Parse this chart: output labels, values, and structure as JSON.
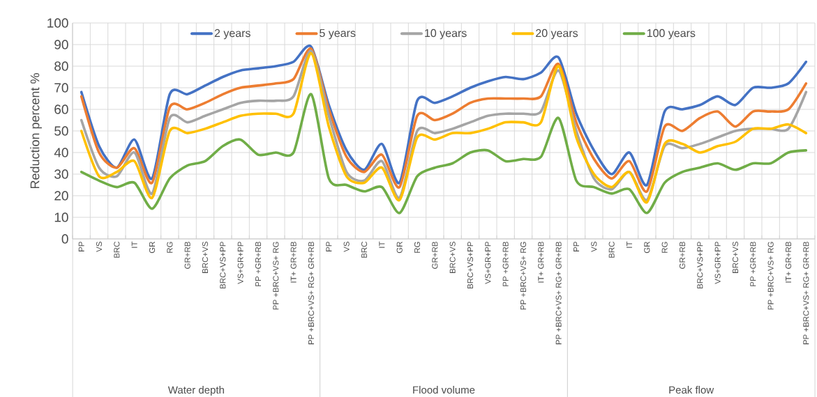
{
  "chart_data": {
    "type": "line",
    "ylabel": "Reduction percent %",
    "categories": [
      "PP",
      "VS",
      "BRC",
      "IT",
      "GR",
      "RG",
      "GR+RB",
      "BRC+VS",
      "BRC+VS+PP",
      "VS+GR+PP",
      "PP +GR+RB",
      "PP +BRC+VS+ RG",
      "IT+ GR+RB",
      "PP +BRC+VS+ RG+ GR+RB",
      "PP",
      "VS",
      "BRC",
      "IT",
      "GR",
      "RG",
      "GR+RB",
      "BRC+VS",
      "BRC+VS+PP",
      "VS+GR+PP",
      "PP +GR+RB",
      "PP +BRC+VS+ RG",
      "IT+ GR+RB",
      "PP +BRC+VS+ RG+ GR+RB",
      "PP",
      "VS",
      "BRC",
      "IT",
      "GR",
      "RG",
      "GR+RB",
      "BRC+VS+PP",
      "VS+GR+PP",
      "BRC+VS",
      "PP +GR+RB",
      "PP +BRC+VS+ RG",
      "IT+ GR+RB",
      "PP +BRC+VS+ RG+ GR+RB"
    ],
    "series": [
      {
        "name": "2 years",
        "color": "#4472c4",
        "values": [
          68,
          43,
          33,
          46,
          28,
          67,
          67,
          71,
          75,
          78,
          79,
          80,
          82,
          89,
          62,
          41,
          32,
          44,
          26,
          64,
          63,
          66,
          70,
          73,
          75,
          74,
          77,
          84,
          58,
          41,
          30,
          40,
          25,
          59,
          60,
          62,
          66,
          62,
          70,
          70,
          72,
          82
        ]
      },
      {
        "name": "5 years",
        "color": "#ed7d31",
        "values": [
          66,
          40,
          33,
          42,
          26,
          61,
          60,
          63,
          67,
          70,
          71,
          72,
          74,
          88,
          60,
          38,
          31,
          39,
          24,
          57,
          55,
          58,
          63,
          65,
          65,
          65,
          66,
          81,
          54,
          37,
          28,
          36,
          22,
          52,
          50,
          56,
          59,
          52,
          59,
          59,
          60,
          72
        ]
      },
      {
        "name": "10 years",
        "color": "#a5a5a5",
        "values": [
          55,
          33,
          29,
          40,
          21,
          56,
          54,
          57,
          60,
          63,
          64,
          64,
          66,
          87,
          57,
          31,
          27,
          36,
          19,
          50,
          49,
          51,
          54,
          57,
          58,
          58,
          59,
          78,
          50,
          28,
          23,
          31,
          18,
          43,
          42,
          44,
          47,
          50,
          51,
          51,
          51,
          68
        ]
      },
      {
        "name": "20 years",
        "color": "#ffc000",
        "values": [
          50,
          29,
          31,
          36,
          19,
          50,
          49,
          51,
          54,
          57,
          58,
          58,
          58,
          86,
          52,
          29,
          26,
          33,
          18,
          47,
          46,
          49,
          49,
          51,
          54,
          54,
          54,
          80,
          47,
          30,
          24,
          31,
          17,
          44,
          44,
          40,
          43,
          45,
          51,
          51,
          53,
          49
        ]
      },
      {
        "name": "100  years",
        "color": "#70ad47",
        "values": [
          31,
          27,
          24,
          26,
          14,
          28,
          34,
          36,
          43,
          46,
          39,
          40,
          40,
          67,
          28,
          25,
          22,
          24,
          12,
          29,
          33,
          35,
          40,
          41,
          36,
          37,
          38,
          56,
          27,
          24,
          21,
          23,
          12,
          26,
          31,
          33,
          35,
          32,
          35,
          35,
          40,
          41
        ]
      }
    ],
    "ylim": [
      0,
      100
    ],
    "yticks": [
      0,
      10,
      20,
      30,
      40,
      50,
      60,
      70,
      80,
      90,
      100
    ],
    "grid": true,
    "legend": "top",
    "annotations": [
      "Water depth",
      "Flood volume",
      "Peak flow"
    ]
  }
}
